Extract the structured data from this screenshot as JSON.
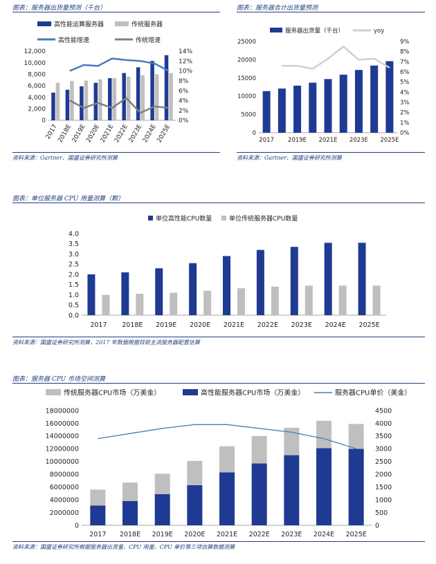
{
  "panels": {
    "p1": {
      "caption": "图表：服务器出货量预测（千台）",
      "source": "资料来源：Gartner、国盛证券研究所测算"
    },
    "p2": {
      "caption": "图表：服务器合计出货量预测",
      "source": "资料来源：Gartner、国盛证券研究所测算"
    },
    "p3": {
      "caption": "图表：单位服务器 CPU 用量测算（颗）",
      "source": "资料来源：国盛证券研究所测算，2017 年数据根据目前主流服务器配置估算"
    },
    "p4": {
      "caption": "图表：服务器 CPU 市场空间测算",
      "source": "资料来源：国盛证券研究所根据服务器出货量、CPU 用量、CPU 单价等三项估算数据测算"
    }
  },
  "colors": {
    "navy": "#1f3a93",
    "gray": "#bfbfbf",
    "lightblue": "#4a7ab8",
    "darkgray": "#7f7f7f",
    "yoy": "#cfcfcf",
    "rule": "#1f3d7a"
  },
  "chart_data": [
    {
      "id": "c1",
      "type": "bar",
      "title": "服务器出货量预测（千台）",
      "categories": [
        "2017",
        "2018E",
        "2019E",
        "2020E",
        "2021E",
        "2022E",
        "2023E",
        "2024E",
        "2025E"
      ],
      "series": [
        {
          "name": "高性能运算服务器",
          "kind": "bar",
          "axis": "left",
          "values": [
            4800,
            5300,
            5900,
            6500,
            7300,
            8200,
            9200,
            10300,
            11300
          ]
        },
        {
          "name": "传统服务器",
          "kind": "bar",
          "axis": "left",
          "values": [
            6500,
            6800,
            6900,
            7100,
            7300,
            7600,
            7800,
            8000,
            8200
          ]
        },
        {
          "name": "高性能增速",
          "kind": "line",
          "axis": "right",
          "values": [
            null,
            10.0,
            11.2,
            11.0,
            12.5,
            12.2,
            12.0,
            11.5,
            10.0
          ]
        },
        {
          "name": "传统增速",
          "kind": "line",
          "axis": "right",
          "values": [
            null,
            4.0,
            2.5,
            3.5,
            2.5,
            4.5,
            1.5,
            2.8,
            2.5
          ]
        }
      ],
      "y_left": {
        "min": 0,
        "max": 12000,
        "ticks": [
          "0",
          "2,000",
          "4,000",
          "6,000",
          "8,000",
          "10,000",
          "12,000"
        ]
      },
      "y_right": {
        "min": 0,
        "max": 14,
        "ticks": [
          "0%",
          "2%",
          "4%",
          "6%",
          "8%",
          "10%",
          "12%",
          "14%"
        ]
      }
    },
    {
      "id": "c2",
      "type": "bar",
      "title": "服务器合计出货量预测",
      "categories": [
        "2017",
        "2018E",
        "2019E",
        "2020E",
        "2021E",
        "2022E",
        "2023E",
        "2024E",
        "2025E"
      ],
      "x_tick_labels": [
        "2017",
        "",
        "2019E",
        "",
        "2021E",
        "",
        "2023E",
        "",
        "2025E"
      ],
      "series": [
        {
          "name": "服务器出货量（千台）",
          "kind": "bar",
          "axis": "left",
          "values": [
            11400,
            12100,
            12900,
            13700,
            14700,
            15900,
            17200,
            18400,
            19600
          ]
        },
        {
          "name": "yoy",
          "kind": "line",
          "axis": "right",
          "values": [
            null,
            6.6,
            6.6,
            6.3,
            7.3,
            8.5,
            7.2,
            7.3,
            6.4
          ]
        }
      ],
      "y_left": {
        "min": 0,
        "max": 25000,
        "ticks": [
          "0",
          "5000",
          "10000",
          "15000",
          "20000",
          "25000"
        ]
      },
      "y_right": {
        "min": 0,
        "max": 9,
        "ticks": [
          "0%",
          "1%",
          "2%",
          "3%",
          "4%",
          "5%",
          "6%",
          "7%",
          "8%",
          "9%"
        ]
      }
    },
    {
      "id": "c3",
      "type": "bar",
      "title": "单位服务器 CPU 用量测算（颗）",
      "categories": [
        "2017",
        "2018E",
        "2019E",
        "2020E",
        "2021E",
        "2022E",
        "2023E",
        "2024E",
        "2025E"
      ],
      "series": [
        {
          "name": "单位高性能CPU数量",
          "kind": "bar",
          "axis": "left",
          "values": [
            2.0,
            2.1,
            2.3,
            2.55,
            2.9,
            3.2,
            3.35,
            3.55,
            3.55
          ]
        },
        {
          "name": "单位传统服务器CPU数量",
          "kind": "bar",
          "axis": "left",
          "values": [
            1.0,
            1.05,
            1.1,
            1.2,
            1.32,
            1.4,
            1.45,
            1.45,
            1.45
          ]
        }
      ],
      "y_left": {
        "min": 0,
        "max": 4.0,
        "ticks": [
          "0.0",
          "0.5",
          "1.0",
          "1.5",
          "2.0",
          "2.5",
          "3.0",
          "3.5",
          "4.0"
        ]
      }
    },
    {
      "id": "c4",
      "type": "bar",
      "title": "服务器 CPU 市场空间测算",
      "categories": [
        "2017",
        "2018E",
        "2019E",
        "2020E",
        "2021E",
        "2022E",
        "2023E",
        "2024E",
        "2025E"
      ],
      "series": [
        {
          "name": "高性能服务器CPU市场（万美金）",
          "kind": "stack_bottom",
          "axis": "left",
          "values": [
            3100000,
            3800000,
            4900000,
            6300000,
            8300000,
            9700000,
            11000000,
            12100000,
            12000000
          ]
        },
        {
          "name": "传统服务器CPU市场（万美金）",
          "kind": "stack_top",
          "axis": "left",
          "values": [
            2500000,
            2900000,
            3200000,
            3800000,
            4100000,
            4300000,
            4300000,
            4300000,
            3900000
          ]
        },
        {
          "name": "服务器CPU单价（美金）",
          "kind": "line",
          "axis": "right",
          "values": [
            3400,
            3600,
            3800,
            3950,
            3950,
            3800,
            3650,
            3400,
            3000
          ]
        }
      ],
      "legend_order": [
        1,
        0,
        2
      ],
      "y_left": {
        "min": 0,
        "max": 18000000,
        "ticks": [
          "0",
          "2000000",
          "4000000",
          "6000000",
          "8000000",
          "10000000",
          "12000000",
          "14000000",
          "16000000",
          "18000000"
        ]
      },
      "y_right": {
        "min": 0,
        "max": 4500,
        "ticks": [
          "0",
          "500",
          "1000",
          "1500",
          "2000",
          "2500",
          "3000",
          "3500",
          "4000",
          "4500"
        ]
      }
    }
  ]
}
